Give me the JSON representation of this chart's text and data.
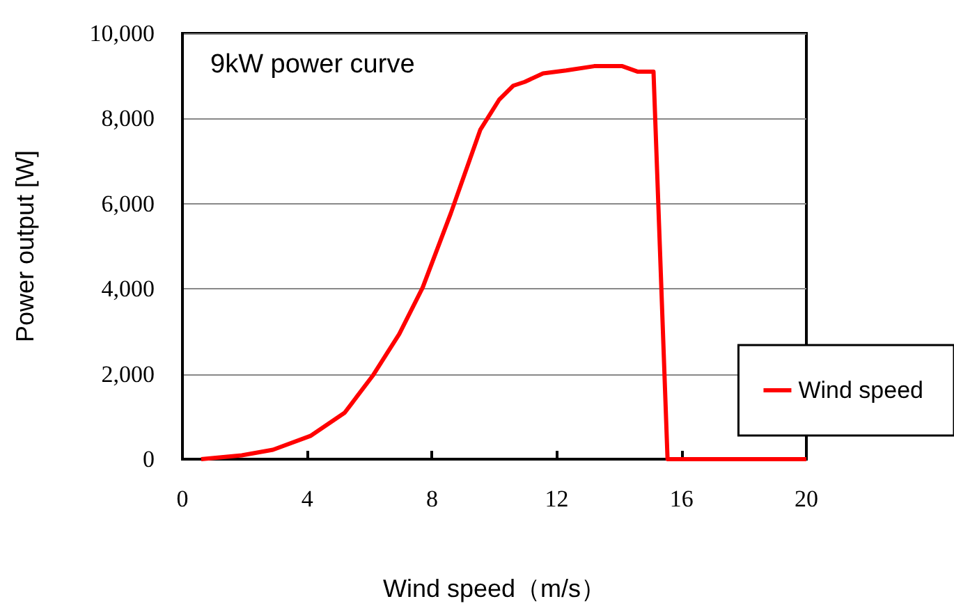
{
  "chart_data": {
    "type": "line",
    "title": "9kW power curve",
    "xlabel": "Wind speed（m/s）",
    "ylabel": "Power output [W]",
    "x": [
      0.6,
      1.9,
      2.9,
      4.1,
      5.2,
      6.1,
      6.95,
      7.7,
      8.6,
      9.55,
      10.15,
      10.6,
      10.97,
      11.56,
      12.3,
      13.2,
      14.1,
      14.6,
      15.1,
      15.55,
      20
    ],
    "series": [
      {
        "name": "Wind speed",
        "color": "#ff0000",
        "values": [
          0,
          90,
          220,
          545,
          1090,
          1960,
          2940,
          4030,
          5770,
          7740,
          8440,
          8770,
          8860,
          9060,
          9130,
          9230,
          9230,
          9100,
          9100,
          0,
          0
        ]
      }
    ],
    "xlim": [
      0,
      20
    ],
    "xticks": [
      0,
      4,
      8,
      12,
      16,
      20
    ],
    "ylim": [
      0,
      10000
    ],
    "yticks": [
      {
        "value": 0,
        "label": "0"
      },
      {
        "value": 2000,
        "label": "2,000"
      },
      {
        "value": 4000,
        "label": "4,000"
      },
      {
        "value": 6000,
        "label": "6,000"
      },
      {
        "value": 8000,
        "label": "8,000"
      },
      {
        "value": 10000,
        "label": "10,000"
      }
    ],
    "grid": "y",
    "legend": "right",
    "marker": "none",
    "line_style": "solid"
  }
}
